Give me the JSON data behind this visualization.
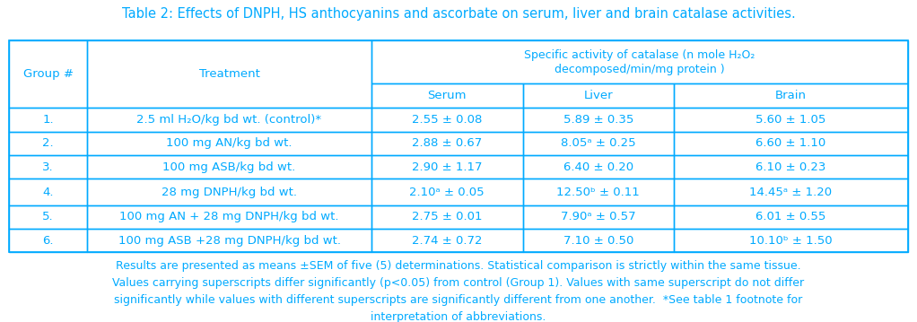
{
  "title": "Table 2: Effects of DNPH, HS anthocyanins and ascorbate on serum, liver and brain catalase activities.",
  "title_fontsize": 10.5,
  "header_color": "#00aaff",
  "cell_text_color": "#00aaff",
  "border_color": "#00aaff",
  "background_color": "#ffffff",
  "col_header1": "Group #",
  "col_header2": "Treatment",
  "col_header3_line1": "Specific activity of catalase (n mole H₂O₂",
  "col_header3_line2": "decomposed/min/mg protein )",
  "sub_headers": [
    "Serum",
    "Liver",
    "Brain"
  ],
  "rows": [
    {
      "group": "1.",
      "treatment": "2.5 ml H₂O/kg bd wt. (control)*",
      "serum": "2.55 ± 0.08",
      "liver": "5.89 ± 0.35",
      "brain": "5.60 ± 1.05"
    },
    {
      "group": "2.",
      "treatment": "100 mg AN/kg bd wt.",
      "serum": "2.88 ± 0.67",
      "liver": "8.05ᵃ ± 0.25",
      "brain": "6.60 ± 1.10"
    },
    {
      "group": "3.",
      "treatment": "100 mg ASB/kg bd wt.",
      "serum": "2.90 ± 1.17",
      "liver": "6.40 ± 0.20",
      "brain": "6.10 ± 0.23"
    },
    {
      "group": "4.",
      "treatment": "28 mg DNPH/kg bd wt.",
      "serum": "2.10ᵃ ± 0.05",
      "liver": "12.50ᵇ ± 0.11",
      "brain": "14.45ᵃ ± 1.20"
    },
    {
      "group": "5.",
      "treatment": "100 mg AN + 28 mg DNPH/kg bd wt.",
      "serum": "2.75 ± 0.01",
      "liver": "7.90ᵃ ± 0.57",
      "brain": "6.01 ± 0.55"
    },
    {
      "group": "6.",
      "treatment": "100 mg ASB +28 mg DNPH/kg bd wt.",
      "serum": "2.74 ± 0.72",
      "liver": "7.10 ± 0.50",
      "brain": "10.10ᵇ ± 1.50"
    }
  ],
  "footnote_lines": [
    "Results are presented as means ±SEM of five (5) determinations. Statistical comparison is strictly within the same tissue.",
    "Values carrying superscripts differ significantly (p<0.05) from control (Group 1). Values with same superscript do not differ",
    "significantly while values with different superscripts are significantly different from one another.  *See table 1 footnote for",
    "interpretation of abbreviations."
  ],
  "footnote_fontsize": 9.0,
  "cell_fontsize": 9.5
}
